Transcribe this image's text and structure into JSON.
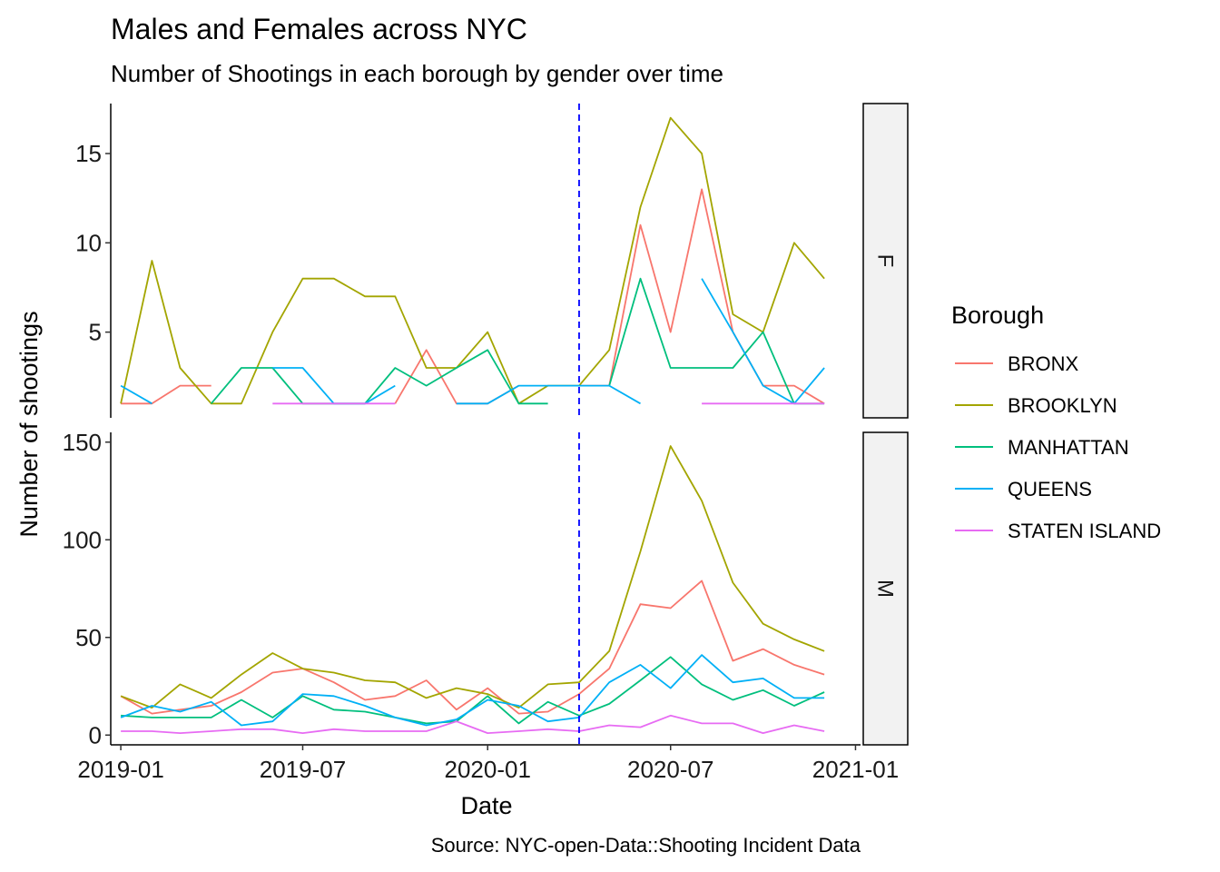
{
  "chart_data": {
    "type": "line",
    "title": "Males and Females across NYC",
    "subtitle": "Number of Shootings in each borough by gender over time",
    "xlabel": "Date",
    "ylabel": "Number of shootings",
    "caption": "Source: NYC-open-Data::Shooting Incident Data",
    "legend": {
      "title": "Borough",
      "position": "right"
    },
    "x_ticks": [
      "2019-01",
      "2019-07",
      "2020-01",
      "2020-07",
      "2021-01"
    ],
    "x_range": [
      "2018-12-22",
      "2021-01-06"
    ],
    "vline": {
      "x": "2020-04-01",
      "color": "#0000ff",
      "style": "dashed"
    },
    "x": [
      "2019-01",
      "2019-02",
      "2019-03",
      "2019-04",
      "2019-05",
      "2019-06",
      "2019-07",
      "2019-08",
      "2019-09",
      "2019-10",
      "2019-11",
      "2019-12",
      "2020-01",
      "2020-02",
      "2020-03",
      "2020-04",
      "2020-05",
      "2020-06",
      "2020-07",
      "2020-08",
      "2020-09",
      "2020-10",
      "2020-11",
      "2020-12"
    ],
    "series_colors": {
      "BRONX": "#F8766D",
      "BROOKLYN": "#A3A500",
      "MANHATTAN": "#00BF7D",
      "QUEENS": "#00B0F6",
      "STATEN ISLAND": "#E76BF3"
    },
    "panels": [
      {
        "strip_label": "F",
        "y_ticks": [
          5,
          10,
          15
        ],
        "y_range": [
          0.2,
          17.8
        ],
        "series": [
          {
            "name": "BRONX",
            "values": [
              1,
              1,
              2,
              2,
              null,
              3,
              null,
              null,
              null,
              1,
              4,
              1,
              1,
              2,
              null,
              2,
              2,
              11,
              5,
              13,
              5,
              2,
              2,
              1
            ]
          },
          {
            "name": "BROOKLYN",
            "values": [
              1,
              9,
              3,
              1,
              1,
              5,
              8,
              8,
              7,
              7,
              3,
              3,
              5,
              1,
              2,
              2,
              4,
              12,
              17,
              15,
              6,
              5,
              10,
              8
            ]
          },
          {
            "name": "MANHATTAN",
            "values": [
              null,
              1,
              null,
              1,
              3,
              3,
              1,
              1,
              1,
              3,
              2,
              3,
              4,
              1,
              1,
              null,
              2,
              8,
              3,
              3,
              3,
              5,
              1,
              1
            ]
          },
          {
            "name": "QUEENS",
            "values": [
              2,
              1,
              null,
              2,
              null,
              3,
              3,
              1,
              1,
              2,
              null,
              1,
              1,
              2,
              2,
              2,
              2,
              1,
              null,
              8,
              5,
              2,
              1,
              3
            ]
          },
          {
            "name": "STATEN ISLAND",
            "values": [
              null,
              null,
              null,
              null,
              null,
              1,
              1,
              1,
              1,
              1,
              null,
              null,
              null,
              null,
              null,
              null,
              2,
              null,
              null,
              1,
              1,
              1,
              1,
              1
            ]
          }
        ]
      },
      {
        "strip_label": "M",
        "y_ticks": [
          0,
          50,
          100,
          150
        ],
        "y_range": [
          -5,
          155
        ],
        "series": [
          {
            "name": "BRONX",
            "values": [
              20,
              11,
              13,
              15,
              22,
              32,
              34,
              27,
              18,
              20,
              28,
              13,
              24,
              11,
              12,
              21,
              34,
              67,
              65,
              79,
              38,
              44,
              36,
              31
            ]
          },
          {
            "name": "BROOKLYN",
            "values": [
              20,
              14,
              26,
              19,
              31,
              42,
              34,
              32,
              28,
              27,
              19,
              24,
              21,
              14,
              26,
              27,
              43,
              94,
              148,
              120,
              78,
              57,
              49,
              43
            ]
          },
          {
            "name": "MANHATTAN",
            "values": [
              10,
              9,
              9,
              9,
              18,
              9,
              20,
              13,
              12,
              9,
              6,
              7,
              20,
              6,
              17,
              10,
              16,
              28,
              40,
              26,
              18,
              23,
              15,
              22
            ]
          },
          {
            "name": "QUEENS",
            "values": [
              9,
              15,
              12,
              17,
              5,
              7,
              21,
              20,
              15,
              9,
              5,
              8,
              18,
              15,
              7,
              9,
              27,
              36,
              24,
              41,
              27,
              29,
              19,
              19
            ]
          },
          {
            "name": "STATEN ISLAND",
            "values": [
              2,
              2,
              1,
              2,
              3,
              3,
              1,
              3,
              2,
              2,
              2,
              7,
              1,
              2,
              3,
              2,
              5,
              4,
              10,
              6,
              6,
              1,
              5,
              2
            ]
          }
        ]
      }
    ]
  }
}
